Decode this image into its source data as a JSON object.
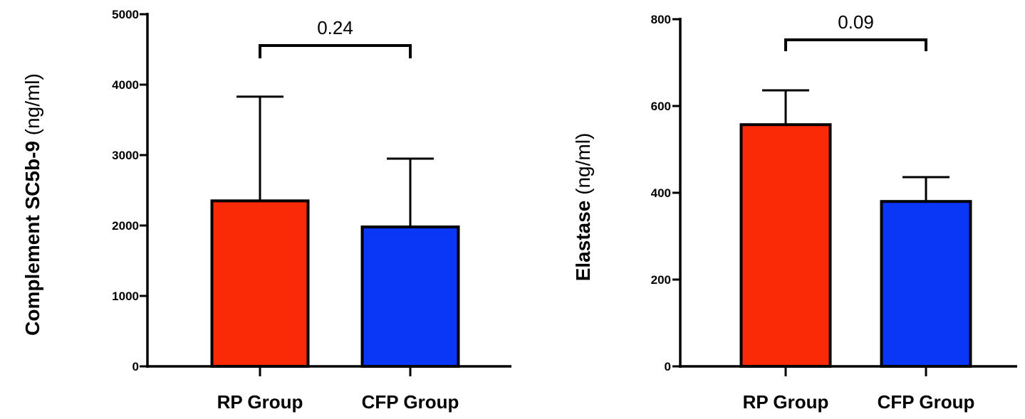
{
  "chart_data": [
    {
      "type": "bar",
      "categories": [
        "RP Group",
        "CFP Group"
      ],
      "values": [
        2350,
        1980
      ],
      "error_upper": [
        3830,
        2950
      ],
      "bar_colors": [
        "#fb2a06",
        "#0a36f5"
      ],
      "ylabel_main": "Complement SC5b-9",
      "ylabel_unit": "(ng/ml)",
      "ylim": [
        0,
        5000
      ],
      "yticks": [
        0,
        1000,
        2000,
        3000,
        4000,
        5000
      ],
      "annotation": "0.24",
      "grid": false
    },
    {
      "type": "bar",
      "categories": [
        "RP Group",
        "CFP Group"
      ],
      "values": [
        557,
        380
      ],
      "error_upper": [
        636,
        436
      ],
      "bar_colors": [
        "#fb2a06",
        "#0a36f5"
      ],
      "ylabel_main": "Elastase",
      "ylabel_unit": "(ng/ml)",
      "ylim": [
        0,
        800
      ],
      "yticks": [
        0,
        200,
        400,
        600,
        800
      ],
      "annotation": "0.09",
      "grid": false
    }
  ]
}
